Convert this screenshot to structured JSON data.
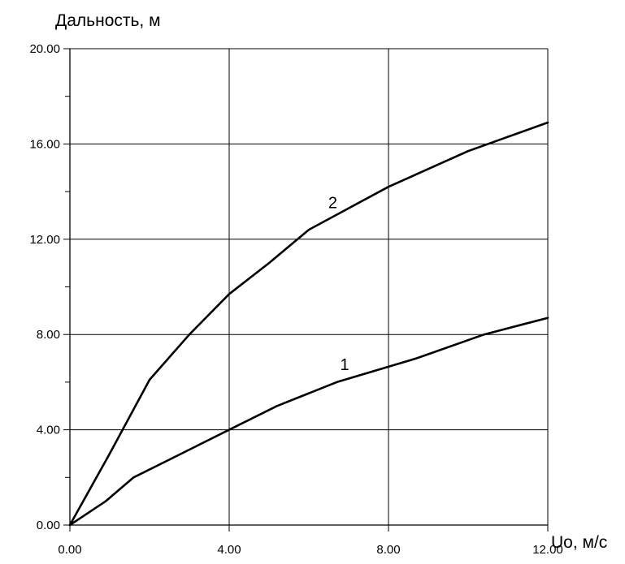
{
  "chart_data": {
    "type": "line",
    "title": "",
    "ylabel": "Дальность, м",
    "xlabel": "Uo, м/с",
    "xlim": [
      0,
      12
    ],
    "ylim": [
      0,
      20
    ],
    "grid": true,
    "x_ticks": [
      {
        "value": 0,
        "label": "0.00"
      },
      {
        "value": 4,
        "label": "4.00"
      },
      {
        "value": 8,
        "label": "8.00"
      },
      {
        "value": 12,
        "label": "12.00"
      }
    ],
    "y_ticks": [
      {
        "value": 0,
        "label": "0.00"
      },
      {
        "value": 4,
        "label": "4.00"
      },
      {
        "value": 8,
        "label": "8.00"
      },
      {
        "value": 12,
        "label": "12.00"
      },
      {
        "value": 16,
        "label": "16.00"
      },
      {
        "value": 20,
        "label": "20.00"
      }
    ],
    "y_minor_ticks": [
      2,
      6,
      10,
      14,
      18
    ],
    "series": [
      {
        "name": "1",
        "color": "#000000",
        "points": [
          [
            0,
            0
          ],
          [
            0.9,
            1.0
          ],
          [
            1.6,
            2.0
          ],
          [
            2.8,
            3.0
          ],
          [
            4.0,
            4.0
          ],
          [
            5.2,
            5.0
          ],
          [
            6.7,
            6.0
          ],
          [
            8.7,
            7.0
          ],
          [
            10.4,
            8.0
          ],
          [
            12.0,
            8.7
          ]
        ]
      },
      {
        "name": "2",
        "color": "#000000",
        "points": [
          [
            0,
            0
          ],
          [
            1.0,
            3.0
          ],
          [
            2.0,
            6.1
          ],
          [
            3.0,
            8.0
          ],
          [
            4.0,
            9.7
          ],
          [
            5.0,
            11.0
          ],
          [
            6.0,
            12.4
          ],
          [
            7.0,
            13.3
          ],
          [
            8.0,
            14.2
          ],
          [
            10.0,
            15.7
          ],
          [
            12.0,
            16.9
          ]
        ]
      }
    ]
  }
}
